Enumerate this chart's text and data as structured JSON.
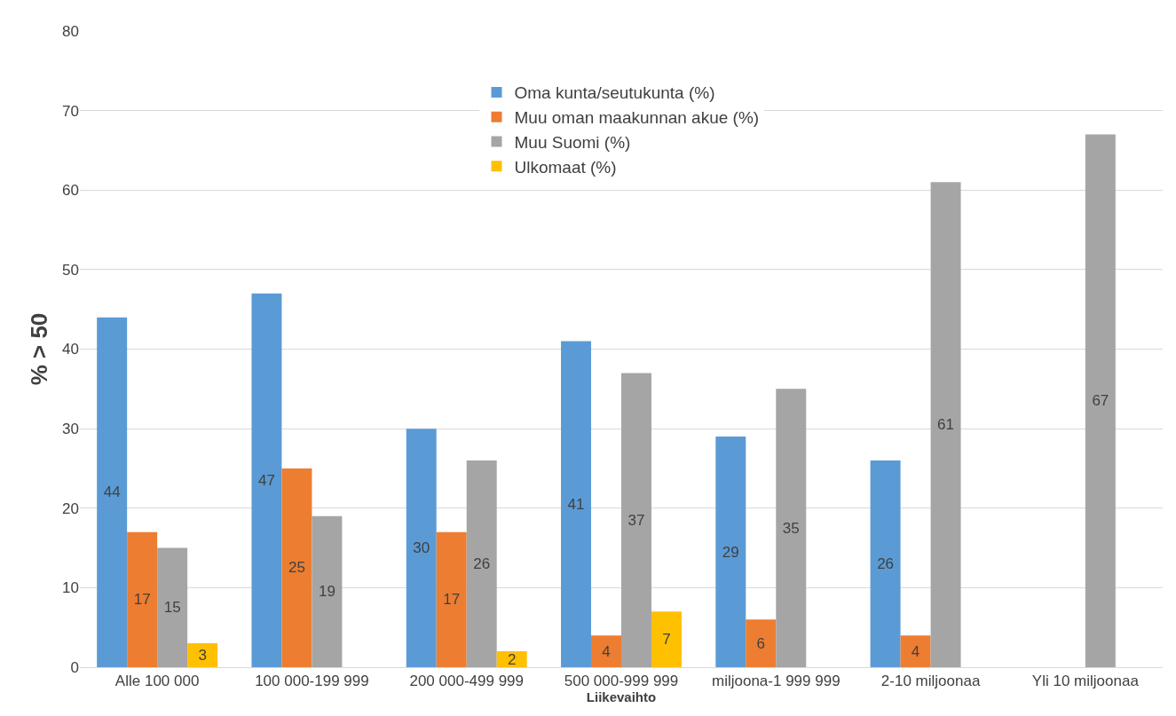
{
  "chart_data": {
    "type": "bar",
    "xlabel": "Liikevaihto",
    "ylabel": "% > 50",
    "categories": [
      "Alle 100 000",
      "100 000-199 999",
      "200 000-499 999",
      "500 000-999 999",
      "miljoona-1 999 999",
      "2-10 miljoonaa",
      "Yli 10 miljoonaa"
    ],
    "series": [
      {
        "name": "Oma kunta/seutukunta (%)",
        "color": "#5b9bd5",
        "values": [
          44,
          47,
          30,
          41,
          29,
          26,
          null
        ]
      },
      {
        "name": "Muu oman maakunnan akue (%)",
        "color": "#ed7d31",
        "values": [
          17,
          25,
          17,
          4,
          6,
          4,
          null
        ]
      },
      {
        "name": "Muu Suomi (%)",
        "color": "#a5a5a5",
        "values": [
          15,
          19,
          26,
          37,
          35,
          61,
          67
        ]
      },
      {
        "name": "Ulkomaat (%)",
        "color": "#ffc000",
        "values": [
          3,
          null,
          2,
          7,
          null,
          null,
          null
        ]
      }
    ],
    "ylim": [
      0,
      80
    ],
    "yticks": [
      0,
      10,
      20,
      30,
      40,
      50,
      60,
      70,
      80
    ],
    "grid": "y",
    "legend": "top",
    "data_labels": true
  }
}
